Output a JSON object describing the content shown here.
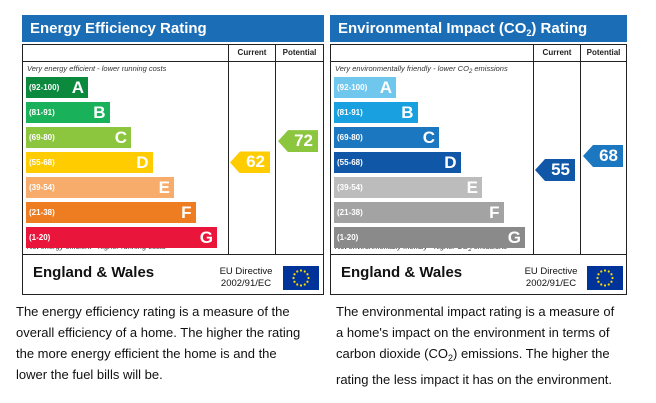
{
  "colors": {
    "header": "#1b6db6",
    "energy_bands": [
      "#0b8a3e",
      "#19b159",
      "#8cc63f",
      "#ffcc00",
      "#f7ac6b",
      "#ee7c21",
      "#e9153b"
    ],
    "env_bands": [
      "#6fc7ee",
      "#18a0e0",
      "#1c77c1",
      "#1157a7",
      "#bcbcbc",
      "#a3a3a3",
      "#8a8a8a"
    ],
    "current_energy_arrow": "#ffcc00",
    "potential_energy_arrow": "#8cc63f",
    "current_env_arrow": "#1157a7",
    "potential_env_arrow": "#1c77c1",
    "flag_blue": "#003399",
    "flag_stars": "#ffdd00"
  },
  "chart_data": [
    {
      "type": "bar",
      "title": "Energy Efficiency Rating",
      "columns": [
        "Current",
        "Potential"
      ],
      "top_note": "Very energy efficient - lower running costs",
      "bottom_note": "Not energy efficient - higher running costs",
      "bands": [
        {
          "range": "(92-100)",
          "letter": "A"
        },
        {
          "range": "(81-91)",
          "letter": "B"
        },
        {
          "range": "(69-80)",
          "letter": "C"
        },
        {
          "range": "(55-68)",
          "letter": "D"
        },
        {
          "range": "(39-54)",
          "letter": "E"
        },
        {
          "range": "(21-38)",
          "letter": "F"
        },
        {
          "range": "(1-20)",
          "letter": "G"
        }
      ],
      "current": "62",
      "current_band": "D",
      "potential": "72",
      "potential_band": "C",
      "footer": "England & Wales",
      "directive": [
        "EU Directive",
        "2002/91/EC"
      ]
    },
    {
      "type": "bar",
      "title_parts": [
        "Environmental Impact (CO",
        "2",
        ") Rating"
      ],
      "columns": [
        "Current",
        "Potential"
      ],
      "top_note_parts": [
        "Very environmentally friendly - lower CO",
        "2",
        " emissions"
      ],
      "bottom_note_parts": [
        "Not environmentally friendly - higher CO",
        "2",
        " emissions"
      ],
      "bands": [
        {
          "range": "(92-100)",
          "letter": "A"
        },
        {
          "range": "(81-91)",
          "letter": "B"
        },
        {
          "range": "(69-80)",
          "letter": "C"
        },
        {
          "range": "(55-68)",
          "letter": "D"
        },
        {
          "range": "(39-54)",
          "letter": "E"
        },
        {
          "range": "(21-38)",
          "letter": "F"
        },
        {
          "range": "(1-20)",
          "letter": "G"
        }
      ],
      "current": "55",
      "current_band": "D",
      "potential": "68",
      "potential_band": "D",
      "footer": "England & Wales",
      "directive": [
        "EU Directive",
        "2002/91/EC"
      ]
    }
  ],
  "descriptions": {
    "energy": [
      "The energy efficiency rating is a measure of the",
      "overall efficiency of a home. The higher the rating",
      "the more energy efficient the home is and the",
      "lower the fuel bills will be."
    ],
    "environment": [
      "The environmental impact rating is a measure of",
      "a home's impact on the environment in terms of",
      [
        "carbon dioxide (CO",
        "2",
        ") emissions. The higher the"
      ],
      "rating the less impact it has on the environment."
    ]
  }
}
